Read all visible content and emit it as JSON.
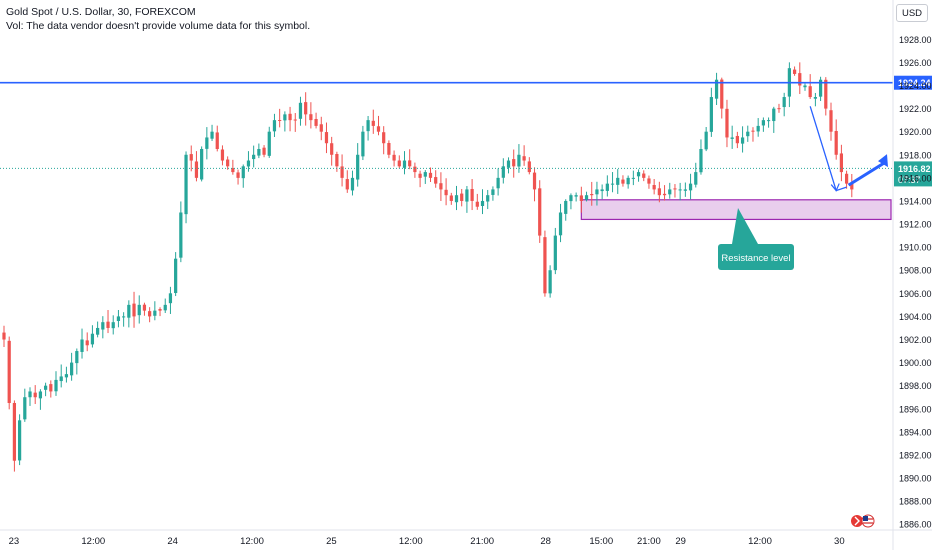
{
  "header": {
    "symbol_line": "Gold Spot / U.S. Dollar, 30, FOREXCOM",
    "volume_note": "Vol: The data vendor doesn't provide volume data for this symbol.",
    "currency": "USD"
  },
  "chart_data": {
    "type": "candlestick",
    "price_axis_ticks": [
      1928,
      1926,
      1924,
      1922,
      1920,
      1918,
      1916,
      1914,
      1912,
      1910,
      1908,
      1906,
      1904,
      1902,
      1900,
      1898,
      1896,
      1894,
      1892,
      1890,
      1888,
      1886
    ],
    "price_axis_labels": [
      "1928.00",
      "1926.00",
      "1924.00",
      "1922.00",
      "1920.00",
      "1918.00",
      "1916.00",
      "1914.00",
      "1912.00",
      "1910.00",
      "1908.00",
      "1906.00",
      "1904.00",
      "1902.00",
      "1900.00",
      "1898.00",
      "1896.00",
      "1894.00",
      "1892.00",
      "1890.00",
      "1888.00",
      "1886.00"
    ],
    "time_axis_labels": [
      {
        "label": "23",
        "bar": 3
      },
      {
        "label": "12:00",
        "bar": 23
      },
      {
        "label": "24",
        "bar": 43
      },
      {
        "label": "12:00",
        "bar": 63
      },
      {
        "label": "25",
        "bar": 83
      },
      {
        "label": "12:00",
        "bar": 103
      },
      {
        "label": "21:00",
        "bar": 121
      },
      {
        "label": "28",
        "bar": 137
      },
      {
        "label": "15:00",
        "bar": 151
      },
      {
        "label": "21:00",
        "bar": 163
      },
      {
        "label": "29",
        "bar": 171
      },
      {
        "label": "12:00",
        "bar": 191
      },
      {
        "label": "30",
        "bar": 211
      }
    ],
    "ylim": [
      1885.5,
      1929.5
    ],
    "bar_count_span": 222,
    "closes": [
      1902.0,
      1896.5,
      1891.5,
      1895.0,
      1897.0,
      1897.5,
      1897.0,
      1897.5,
      1898.0,
      1897.5,
      1898.5,
      1898.8,
      1899.0,
      1900.0,
      1901.0,
      1902.0,
      1901.5,
      1902.5,
      1903.0,
      1903.5,
      1903.0,
      1903.5,
      1904.0,
      1904.0,
      1905.0,
      1904.0,
      1905.0,
      1904.5,
      1904.0,
      1904.5,
      1904.5,
      1905.0,
      1906.0,
      1909.0,
      1913.0,
      1918.0,
      1917.5,
      1916.0,
      1918.5,
      1919.5,
      1920.0,
      1918.5,
      1917.5,
      1917.0,
      1916.5,
      1916.0,
      1917.0,
      1917.5,
      1918.0,
      1918.5,
      1918.0,
      1920.0,
      1921.0,
      1921.0,
      1921.5,
      1921.0,
      1921.0,
      1922.5,
      1921.5,
      1921.0,
      1920.5,
      1920.0,
      1919.0,
      1918.0,
      1917.0,
      1916.0,
      1915.0,
      1916.0,
      1918.0,
      1920.0,
      1921.0,
      1920.5,
      1920.0,
      1919.0,
      1918.0,
      1917.5,
      1917.0,
      1917.5,
      1917.0,
      1916.5,
      1916.0,
      1916.5,
      1916.0,
      1915.5,
      1915.0,
      1914.5,
      1914.0,
      1914.5,
      1914.0,
      1915.0,
      1914.0,
      1913.5,
      1914.0,
      1914.5,
      1915.0,
      1916.0,
      1917.0,
      1917.5,
      1917.0,
      1918.0,
      1917.5,
      1916.5,
      1915.0,
      1911.0,
      1906.0,
      1908.0,
      1911.0,
      1913.0,
      1914.0,
      1914.5,
      1914.5,
      1914.0,
      1914.5,
      1914.5,
      1915.0,
      1915.0,
      1915.5,
      1915.5,
      1916.0,
      1915.5,
      1916.0,
      1916.0,
      1916.5,
      1916.0,
      1915.5,
      1915.0,
      1914.5,
      1914.5,
      1915.0,
      1915.0,
      1915.0,
      1915.0,
      1915.5,
      1916.5,
      1918.5,
      1920.0,
      1923.0,
      1924.5,
      1922.0,
      1919.5,
      1919.5,
      1919.0,
      1919.5,
      1920.0,
      1920.0,
      1920.5,
      1921.0,
      1921.0,
      1922.0,
      1922.0,
      1923.0,
      1925.5,
      1925.0,
      1924.0,
      1924.0,
      1923.0,
      1923.0,
      1924.5,
      1922.0,
      1920.0,
      1918.0,
      1916.5,
      1915.5,
      1915.0
    ]
  },
  "price_labels": {
    "horizontal_level": "1924.24",
    "last_price": "1916.82",
    "countdown": "07:37"
  },
  "annotations": {
    "callout": "Resistance level"
  },
  "colors": {
    "up": "#26a69a",
    "down": "#ef5350",
    "level_line": "#2962ff",
    "zone_fill": "#e1bee7",
    "zone_border": "#9c27b0",
    "callout": "#26a69a",
    "arrow": "#2962ff",
    "last_price": "#26a69a"
  }
}
